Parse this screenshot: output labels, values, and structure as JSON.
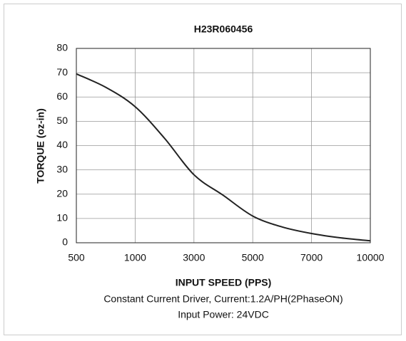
{
  "chart_data": {
    "type": "line",
    "title": "H23R060456",
    "x_label": "INPUT SPEED (PPS)",
    "y_label": "TORQUE (oz-in)",
    "notes": [
      "Constant Current Driver, Current:1.2A/PH(2PhaseON)",
      "Input Power: 24VDC"
    ],
    "categories": [
      "500",
      null,
      "1000",
      null,
      "3000",
      null,
      "5000",
      null,
      "7000",
      null,
      "10000"
    ],
    "values": [
      69.5,
      64,
      56,
      43,
      28,
      19.5,
      11,
      6.5,
      3.8,
      2,
      0.8
    ],
    "color": "#222222",
    "ylim": [
      0,
      80
    ],
    "yticks": [
      0,
      10,
      20,
      30,
      40,
      50,
      60,
      70,
      80
    ],
    "grid": true
  }
}
